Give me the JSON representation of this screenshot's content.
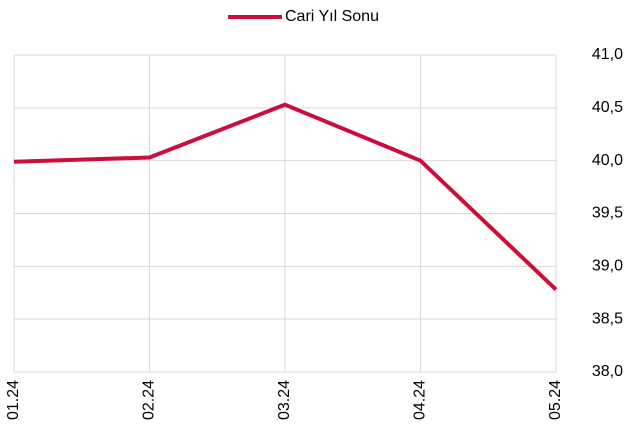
{
  "chart_data": {
    "type": "line",
    "categories": [
      "01.24",
      "02.24",
      "03.24",
      "04.24",
      "05.24"
    ],
    "series": [
      {
        "name": "Cari Yıl Sonu",
        "color": "#cc0e3c",
        "values": [
          39.99,
          40.03,
          40.53,
          40.0,
          38.78
        ]
      }
    ],
    "ylim": [
      38.0,
      41.0
    ],
    "yticks": [
      {
        "value": 38.0,
        "label": "38,0"
      },
      {
        "value": 38.5,
        "label": "38,5"
      },
      {
        "value": 39.0,
        "label": "39,0"
      },
      {
        "value": 39.5,
        "label": "39,5"
      },
      {
        "value": 40.0,
        "label": "40,0"
      },
      {
        "value": 40.5,
        "label": "40,5"
      },
      {
        "value": 41.0,
        "label": "41,0"
      }
    ],
    "grid": true,
    "legend": "top",
    "y_axis_side": "right"
  }
}
